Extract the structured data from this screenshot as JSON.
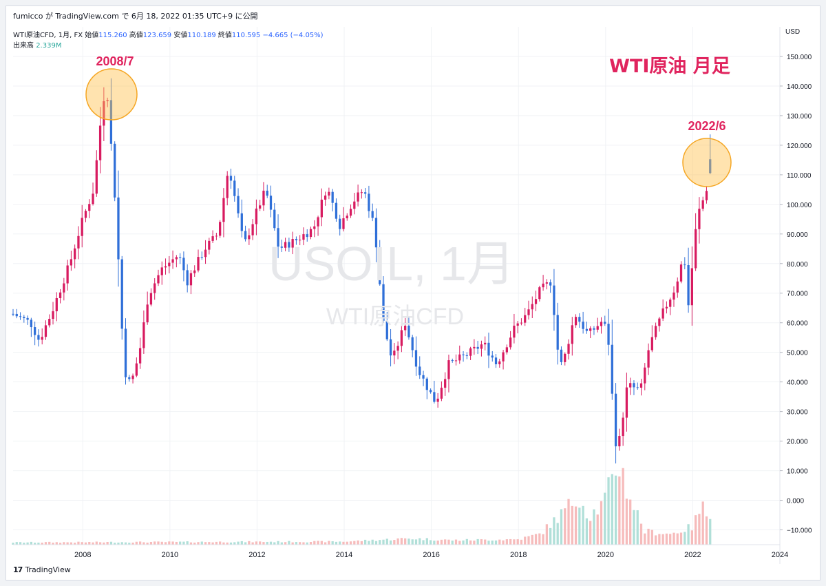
{
  "header": {
    "text": "fumicco が TradingView.com で 6月 18, 2022 01:35 UTC+9 に公開"
  },
  "legend": {
    "symbol": "WTI原油CFD, 1月, FX",
    "open_label": "始値",
    "open": "115.260",
    "high_label": "高値",
    "high": "123.659",
    "low_label": "安値",
    "low": "110.189",
    "close_label": "終値",
    "close": "110.595",
    "change": "−4.665 (−4.05%)",
    "volume_label": "出来高",
    "volume": "2.339M"
  },
  "watermark": {
    "line1": "USOIL, 1月",
    "line2": "WTI原油CFD"
  },
  "annotations": {
    "title": "WTI原油 月足",
    "peak_label": "2008/7",
    "recent_label": "2022/6"
  },
  "axis": {
    "currency": "USD"
  },
  "footer": {
    "brand": "TradingView"
  },
  "colors": {
    "up": "#d81b60",
    "down": "#2f6fd8",
    "vol_up": "#f5b4b4",
    "vol_down": "#a7dcd4",
    "annotation": "#e0245e",
    "circle_fill": "#ffc04d"
  },
  "chart_data": {
    "type": "candlestick",
    "title": "WTI原油 月足",
    "ylabel": "USD",
    "ylim": [
      -15,
      160
    ],
    "y_ticks": [
      -10,
      0,
      10,
      20,
      30,
      40,
      50,
      60,
      70,
      80,
      90,
      100,
      110,
      120,
      130,
      140,
      150
    ],
    "x_ticks": [
      "2008",
      "2010",
      "2012",
      "2014",
      "2016",
      "2018",
      "2020",
      "2022",
      "2024"
    ],
    "x_range": [
      2006.4,
      2024.0
    ],
    "last_candle": {
      "date": "2022-06",
      "open": 115.26,
      "high": 123.659,
      "low": 110.189,
      "close": 110.595
    },
    "close_path": [
      {
        "t": 2006.4,
        "v": 63
      },
      {
        "t": 2006.8,
        "v": 60
      },
      {
        "t": 2007.0,
        "v": 54
      },
      {
        "t": 2007.3,
        "v": 64
      },
      {
        "t": 2007.7,
        "v": 80
      },
      {
        "t": 2008.0,
        "v": 95
      },
      {
        "t": 2008.25,
        "v": 105
      },
      {
        "t": 2008.45,
        "v": 134
      },
      {
        "t": 2008.55,
        "v": 140
      },
      {
        "t": 2008.75,
        "v": 100
      },
      {
        "t": 2008.95,
        "v": 44
      },
      {
        "t": 2009.1,
        "v": 39
      },
      {
        "t": 2009.3,
        "v": 50
      },
      {
        "t": 2009.5,
        "v": 69
      },
      {
        "t": 2009.8,
        "v": 78
      },
      {
        "t": 2010.2,
        "v": 83
      },
      {
        "t": 2010.4,
        "v": 74
      },
      {
        "t": 2010.8,
        "v": 85
      },
      {
        "t": 2011.1,
        "v": 90
      },
      {
        "t": 2011.35,
        "v": 113
      },
      {
        "t": 2011.7,
        "v": 86
      },
      {
        "t": 2012.0,
        "v": 98
      },
      {
        "t": 2012.2,
        "v": 105
      },
      {
        "t": 2012.5,
        "v": 85
      },
      {
        "t": 2012.9,
        "v": 88
      },
      {
        "t": 2013.3,
        "v": 92
      },
      {
        "t": 2013.6,
        "v": 106
      },
      {
        "t": 2013.9,
        "v": 93
      },
      {
        "t": 2014.2,
        "v": 101
      },
      {
        "t": 2014.45,
        "v": 105
      },
      {
        "t": 2014.7,
        "v": 92
      },
      {
        "t": 2014.9,
        "v": 60
      },
      {
        "t": 2015.1,
        "v": 47
      },
      {
        "t": 2015.4,
        "v": 60
      },
      {
        "t": 2015.7,
        "v": 44
      },
      {
        "t": 2015.95,
        "v": 37
      },
      {
        "t": 2016.1,
        "v": 33
      },
      {
        "t": 2016.4,
        "v": 46
      },
      {
        "t": 2016.8,
        "v": 49
      },
      {
        "t": 2017.2,
        "v": 53
      },
      {
        "t": 2017.5,
        "v": 46
      },
      {
        "t": 2017.9,
        "v": 58
      },
      {
        "t": 2018.2,
        "v": 63
      },
      {
        "t": 2018.5,
        "v": 71
      },
      {
        "t": 2018.75,
        "v": 74
      },
      {
        "t": 2018.9,
        "v": 51
      },
      {
        "t": 2019.0,
        "v": 45
      },
      {
        "t": 2019.3,
        "v": 63
      },
      {
        "t": 2019.6,
        "v": 56
      },
      {
        "t": 2019.95,
        "v": 61
      },
      {
        "t": 2020.1,
        "v": 51
      },
      {
        "t": 2020.2,
        "v": 20
      },
      {
        "t": 2020.3,
        "v": 19
      },
      {
        "t": 2020.5,
        "v": 39
      },
      {
        "t": 2020.8,
        "v": 37
      },
      {
        "t": 2021.0,
        "v": 52
      },
      {
        "t": 2021.3,
        "v": 63
      },
      {
        "t": 2021.6,
        "v": 72
      },
      {
        "t": 2021.8,
        "v": 83
      },
      {
        "t": 2021.9,
        "v": 66
      },
      {
        "t": 2022.1,
        "v": 96
      },
      {
        "t": 2022.2,
        "v": 100
      },
      {
        "t": 2022.3,
        "v": 104
      },
      {
        "t": 2022.42,
        "v": 114
      },
      {
        "t": 2022.47,
        "v": 110.6
      }
    ],
    "volume_path": [
      {
        "t": 2006.4,
        "v": 0.25
      },
      {
        "t": 2010.0,
        "v": 0.3
      },
      {
        "t": 2014.0,
        "v": 0.35
      },
      {
        "t": 2015.5,
        "v": 0.7
      },
      {
        "t": 2016.5,
        "v": 0.5
      },
      {
        "t": 2018.0,
        "v": 0.6
      },
      {
        "t": 2018.5,
        "v": 1.2
      },
      {
        "t": 2019.0,
        "v": 3.5
      },
      {
        "t": 2019.4,
        "v": 5.5
      },
      {
        "t": 2019.6,
        "v": 3.2
      },
      {
        "t": 2019.9,
        "v": 4.3
      },
      {
        "t": 2020.15,
        "v": 7.0
      },
      {
        "t": 2020.3,
        "v": 9.5
      },
      {
        "t": 2020.5,
        "v": 6.0
      },
      {
        "t": 2020.9,
        "v": 1.5
      },
      {
        "t": 2021.5,
        "v": 1.2
      },
      {
        "t": 2022.0,
        "v": 2.0
      },
      {
        "t": 2022.2,
        "v": 4.3
      },
      {
        "t": 2022.47,
        "v": 2.339
      }
    ]
  }
}
